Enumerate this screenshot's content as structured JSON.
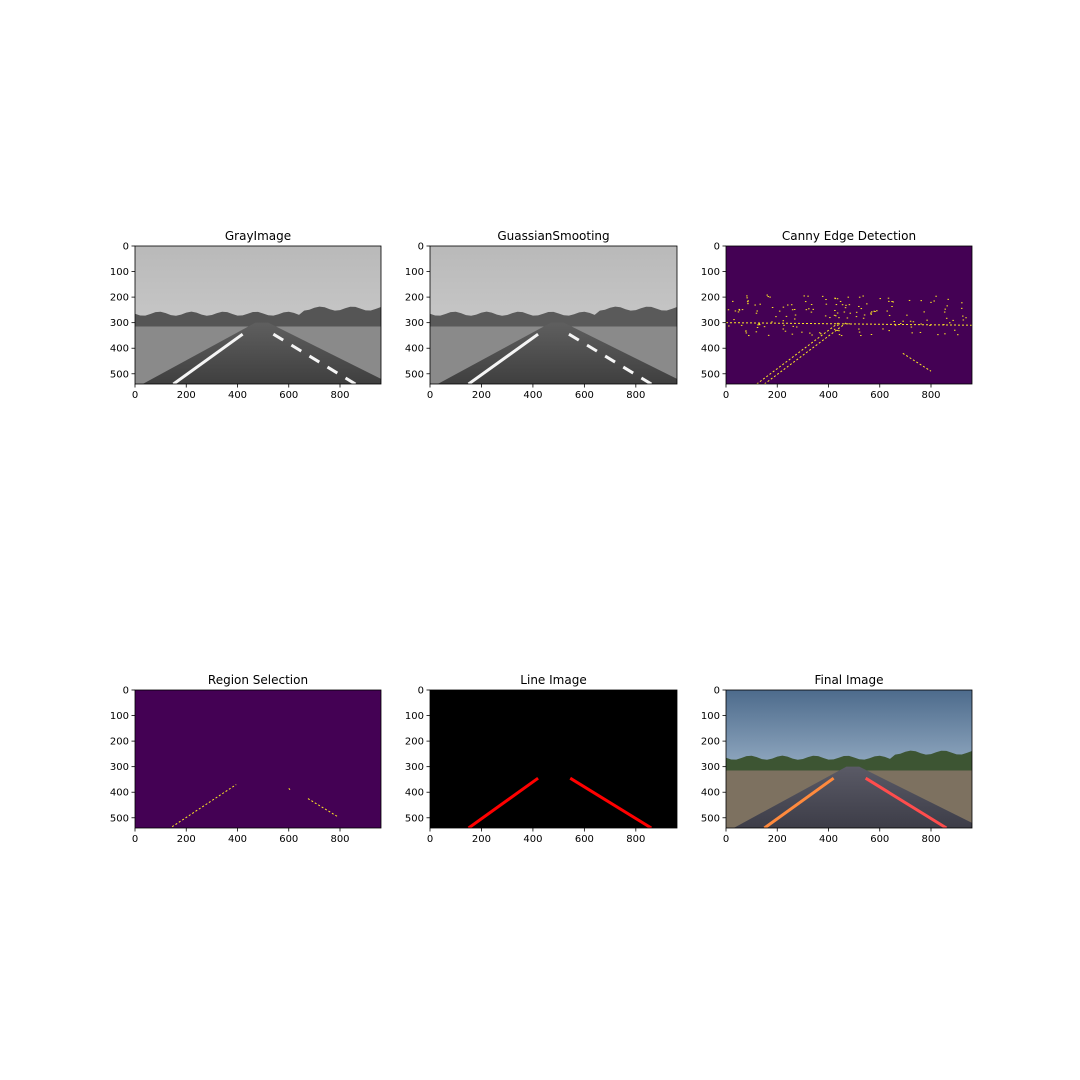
{
  "figure": {
    "colors": {
      "viridis_bg": "#440154",
      "edge": "#fde725",
      "line_red": "#ff0000",
      "black": "#000000"
    }
  },
  "chart_data": [
    {
      "type": "image",
      "title": "GrayImage",
      "image_content": "grayscale-road",
      "xlim": [
        0,
        960
      ],
      "ylim": [
        540,
        0
      ],
      "xticks": [
        0,
        200,
        400,
        600,
        800
      ],
      "yticks": [
        0,
        100,
        200,
        300,
        400,
        500
      ],
      "left_lane": [
        [
          150,
          540
        ],
        [
          420,
          345
        ]
      ],
      "right_lane": [
        [
          540,
          345
        ],
        [
          860,
          540
        ]
      ]
    },
    {
      "type": "image",
      "title": "GuassianSmooting",
      "image_content": "grayscale-road-smoothed",
      "xlim": [
        0,
        960
      ],
      "ylim": [
        540,
        0
      ],
      "xticks": [
        0,
        200,
        400,
        600,
        800
      ],
      "yticks": [
        0,
        100,
        200,
        300,
        400,
        500
      ],
      "left_lane": [
        [
          150,
          540
        ],
        [
          420,
          345
        ]
      ],
      "right_lane": [
        [
          540,
          345
        ],
        [
          860,
          540
        ]
      ]
    },
    {
      "type": "image",
      "title": "Canny Edge Detection",
      "image_content": "edge-map",
      "xlim": [
        0,
        960
      ],
      "ylim": [
        540,
        0
      ],
      "xticks": [
        0,
        200,
        400,
        600,
        800
      ],
      "yticks": [
        0,
        100,
        200,
        300,
        400,
        500
      ],
      "edge_lines": [
        [
          [
            150,
            540
          ],
          [
            470,
            300
          ]
        ],
        [
          [
            120,
            540
          ],
          [
            440,
            300
          ]
        ],
        [
          [
            690,
            420
          ],
          [
            800,
            490
          ]
        ],
        [
          [
            0,
            300
          ],
          [
            960,
            310
          ]
        ]
      ]
    },
    {
      "type": "image",
      "title": "Region Selection",
      "image_content": "masked-edges",
      "xlim": [
        0,
        960
      ],
      "ylim": [
        540,
        0
      ],
      "xticks": [
        0,
        200,
        400,
        600,
        800
      ],
      "yticks": [
        0,
        100,
        200,
        300,
        400,
        500
      ],
      "edge_lines": [
        [
          [
            145,
            535
          ],
          [
            395,
            370
          ]
        ],
        [
          [
            675,
            425
          ],
          [
            790,
            495
          ]
        ],
        [
          [
            600,
            385
          ],
          [
            605,
            390
          ]
        ]
      ]
    },
    {
      "type": "image",
      "title": "Line Image",
      "image_content": "hough-lines",
      "xlim": [
        0,
        960
      ],
      "ylim": [
        540,
        0
      ],
      "xticks": [
        0,
        200,
        400,
        600,
        800
      ],
      "yticks": [
        0,
        100,
        200,
        300,
        400,
        500
      ],
      "lines": [
        [
          [
            150,
            540
          ],
          [
            420,
            345
          ]
        ],
        [
          [
            545,
            345
          ],
          [
            860,
            540
          ]
        ]
      ]
    },
    {
      "type": "image",
      "title": "Final Image",
      "image_content": "color-road-with-lanes",
      "xlim": [
        0,
        960
      ],
      "ylim": [
        540,
        0
      ],
      "xticks": [
        0,
        200,
        400,
        600,
        800
      ],
      "yticks": [
        0,
        100,
        200,
        300,
        400,
        500
      ],
      "lines": [
        [
          [
            150,
            540
          ],
          [
            420,
            345
          ]
        ],
        [
          [
            545,
            345
          ],
          [
            860,
            540
          ]
        ]
      ]
    }
  ]
}
